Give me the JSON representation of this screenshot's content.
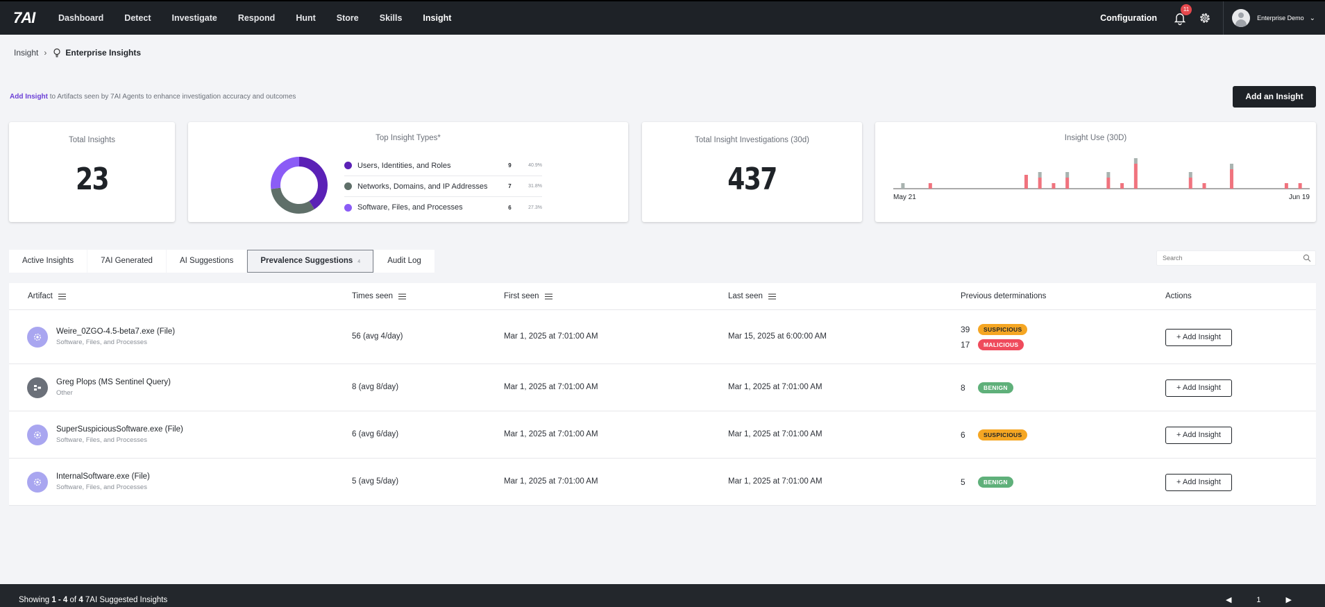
{
  "nav": {
    "logo": "7AI",
    "items": [
      "Dashboard",
      "Detect",
      "Investigate",
      "Respond",
      "Hunt",
      "Store",
      "Skills",
      "Insight"
    ],
    "active": "Insight",
    "configuration": "Configuration",
    "notification_count": "11",
    "user_name": "Enterprise Demo"
  },
  "breadcrumb": {
    "root": "Insight",
    "current": "Enterprise Insights"
  },
  "intro": {
    "link": "Add Insight",
    "text": " to Artifacts seen by 7AI Agents to enhance investigation accuracy and outcomes"
  },
  "add_button": "Add an Insight",
  "cards": {
    "total_insights": {
      "title": "Total Insights",
      "value": "23"
    },
    "top_types": {
      "title": "Top Insight Types*",
      "items": [
        {
          "label": "Users, Identities, and Roles",
          "count": "9",
          "pct": "40.9%",
          "color": "#5b21b6"
        },
        {
          "label": "Networks, Domains, and IP Addresses",
          "count": "7",
          "pct": "31.8%",
          "color": "#5f6f69"
        },
        {
          "label": "Software, Files, and Processes",
          "count": "6",
          "pct": "27.3%",
          "color": "#8b5cf6"
        }
      ]
    },
    "investigations": {
      "title": "Total Insight Investigations (30d)",
      "value": "437"
    },
    "insight_use": {
      "title": "Insight Use (30D)",
      "x_start": "May 21",
      "x_end": "Jun 19"
    }
  },
  "chart_data": {
    "type": "bar",
    "title": "Insight Use (30D)",
    "xlabel": "",
    "ylabel": "",
    "x_range": [
      "May 21",
      "Jun 19"
    ],
    "colors": {
      "red": "#f0737e",
      "grey": "#a9b3b0"
    },
    "series": [
      {
        "values": [
          0,
          0,
          2,
          0,
          0,
          0,
          0,
          0,
          0,
          5,
          4,
          2,
          4,
          0,
          0,
          4,
          2,
          9,
          0,
          0,
          0,
          4,
          2,
          0,
          7,
          0,
          0,
          0,
          2,
          2
        ]
      },
      {
        "values": [
          2,
          0,
          0,
          0,
          0,
          0,
          0,
          0,
          0,
          0,
          2,
          0,
          2,
          0,
          0,
          2,
          0,
          2,
          0,
          0,
          0,
          2,
          0,
          0,
          2,
          0,
          0,
          0,
          0,
          0
        ]
      }
    ]
  },
  "tabs": [
    {
      "label": "Active Insights"
    },
    {
      "label": "7AI Generated"
    },
    {
      "label": "AI Suggestions"
    },
    {
      "label": "Prevalence Suggestions",
      "badge": "4"
    },
    {
      "label": "Audit Log"
    }
  ],
  "active_tab": "Prevalence Suggestions",
  "search": {
    "placeholder": "Search"
  },
  "table": {
    "headers": {
      "artifact": "Artifact",
      "times_seen": "Times seen",
      "first_seen": "First seen",
      "last_seen": "Last seen",
      "prev": "Previous determinations",
      "actions": "Actions"
    },
    "rows": [
      {
        "icon": "gear-icon",
        "name": "Weire_0ZGO-4.5-beta7.exe (File)",
        "category": "Software, Files, and Processes",
        "times_seen": "56 (avg 4/day)",
        "first_seen": "Mar 1, 2025 at 7:01:00 AM",
        "last_seen": "Mar 15, 2025 at 6:00:00 AM",
        "determinations": [
          {
            "count": "39",
            "label": "SUSPICIOUS",
            "kind": "sus"
          },
          {
            "count": "17",
            "label": "MALICIOUS",
            "kind": "mal"
          }
        ],
        "action": "+ Add Insight"
      },
      {
        "icon": "query-icon",
        "name": "Greg Plops (MS Sentinel Query)",
        "category": "Other",
        "times_seen": "8 (avg 8/day)",
        "first_seen": "Mar 1, 2025 at 7:01:00 AM",
        "last_seen": "Mar 1, 2025 at 7:01:00 AM",
        "determinations": [
          {
            "count": "8",
            "label": "BENIGN",
            "kind": "ben"
          }
        ],
        "action": "+ Add Insight"
      },
      {
        "icon": "gear-icon",
        "name": "SuperSuspiciousSoftware.exe (File)",
        "category": "Software, Files, and Processes",
        "times_seen": "6 (avg 6/day)",
        "first_seen": "Mar 1, 2025 at 7:01:00 AM",
        "last_seen": "Mar 1, 2025 at 7:01:00 AM",
        "determinations": [
          {
            "count": "6",
            "label": "SUSPICIOUS",
            "kind": "sus"
          }
        ],
        "action": "+ Add Insight"
      },
      {
        "icon": "gear-icon",
        "name": "InternalSoftware.exe (File)",
        "category": "Software, Files, and Processes",
        "times_seen": "5 (avg 5/day)",
        "first_seen": "Mar 1, 2025 at 7:01:00 AM",
        "last_seen": "Mar 1, 2025 at 7:01:00 AM",
        "determinations": [
          {
            "count": "5",
            "label": "BENIGN",
            "kind": "ben"
          }
        ],
        "action": "+ Add Insight"
      }
    ]
  },
  "footer": {
    "prefix": "Showing ",
    "range": "1 - 4",
    "of": " of ",
    "total": "4",
    "suffix": " 7AI Suggested Insights",
    "page": "1"
  }
}
